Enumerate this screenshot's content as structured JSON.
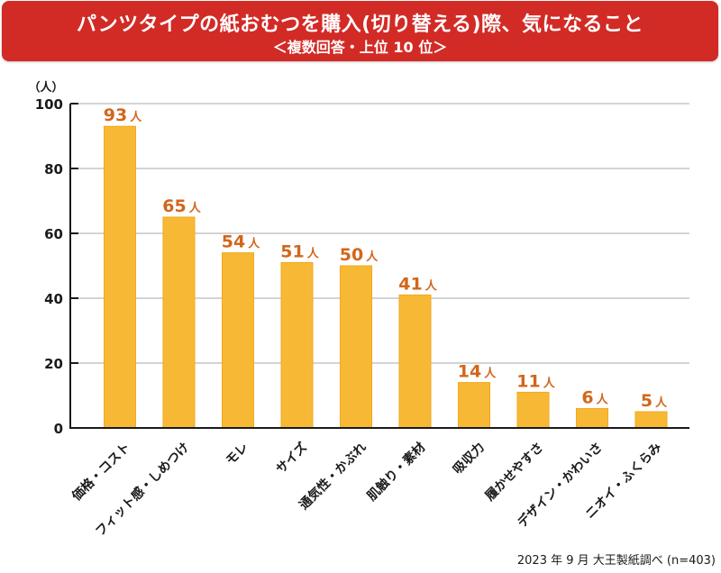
{
  "header": {
    "title": "パンツタイプの紙おむつを購入(切り替える)際、気になること",
    "subtitle": "＜複数回答・上位 10 位＞"
  },
  "footer": {
    "source": "2023 年 9 月 大王製紙調べ (n=403)"
  },
  "colors": {
    "banner": "#d22b26",
    "bar": "#f7b935",
    "bar_edge": "#f2a81c",
    "data_label": "#d2661b",
    "grid": "#d4d4d4",
    "axis": "#1a1a1a"
  },
  "chart_data": {
    "type": "bar",
    "title": "パンツタイプの紙おむつを購入(切り替える)際、気になること",
    "subtitle": "＜複数回答・上位 10 位＞",
    "xlabel": "",
    "ylabel": "（人）",
    "ylim": [
      0,
      100
    ],
    "yticks": [
      0,
      20,
      40,
      60,
      80,
      100
    ],
    "grid": true,
    "legend": "none",
    "categories": [
      "価格・コスト",
      "フィット感・しめつけ",
      "モレ",
      "サイズ",
      "通気性・かぶれ",
      "肌触り・素材",
      "吸収力",
      "履かせやすさ",
      "デザイン・かわいさ",
      "ニオイ・ふくらみ"
    ],
    "values": [
      93,
      65,
      54,
      51,
      50,
      41,
      14,
      11,
      6,
      5
    ],
    "value_unit": "人"
  }
}
